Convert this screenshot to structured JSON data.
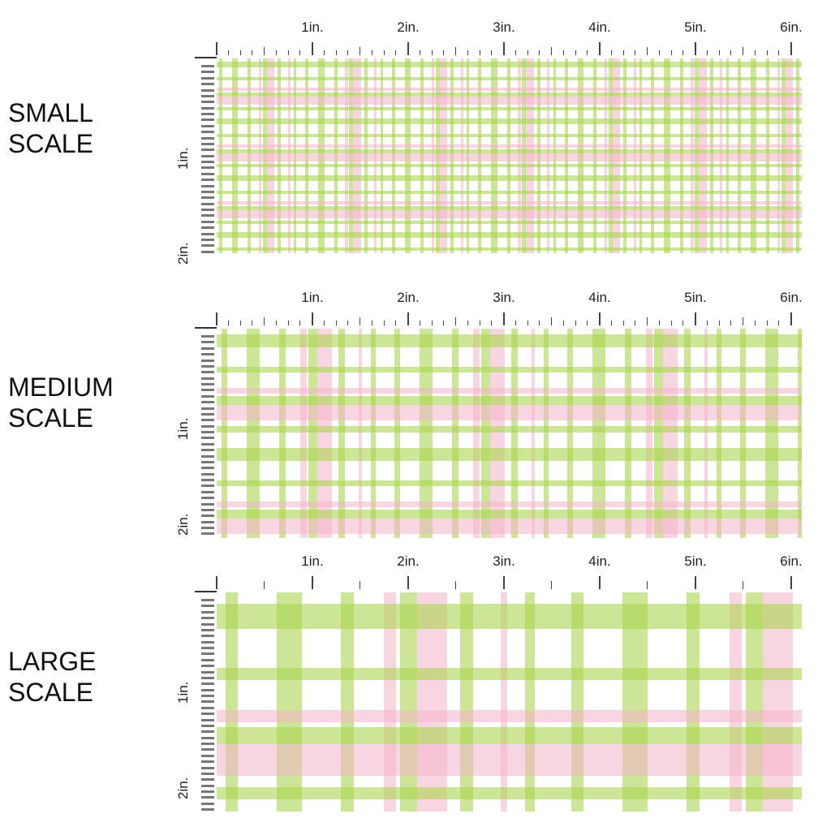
{
  "sections": [
    {
      "id": "small",
      "line1": "SMALL",
      "line2": "SCALE",
      "scale": 0.25
    },
    {
      "id": "medium",
      "line1": "MEDIUM",
      "line2": "SCALE",
      "scale": 0.5
    },
    {
      "id": "large",
      "line1": "LARGE",
      "line2": "SCALE",
      "scale": 1
    }
  ],
  "ruler": {
    "top_labels": [
      "1in.",
      "2in.",
      "3in.",
      "4in.",
      "5in.",
      "6in."
    ],
    "side_labels": [
      "1in.",
      "2in."
    ]
  },
  "colors": {
    "green": "#b8d96a",
    "pink": "#f5c6d3",
    "background": "#ffffff"
  }
}
